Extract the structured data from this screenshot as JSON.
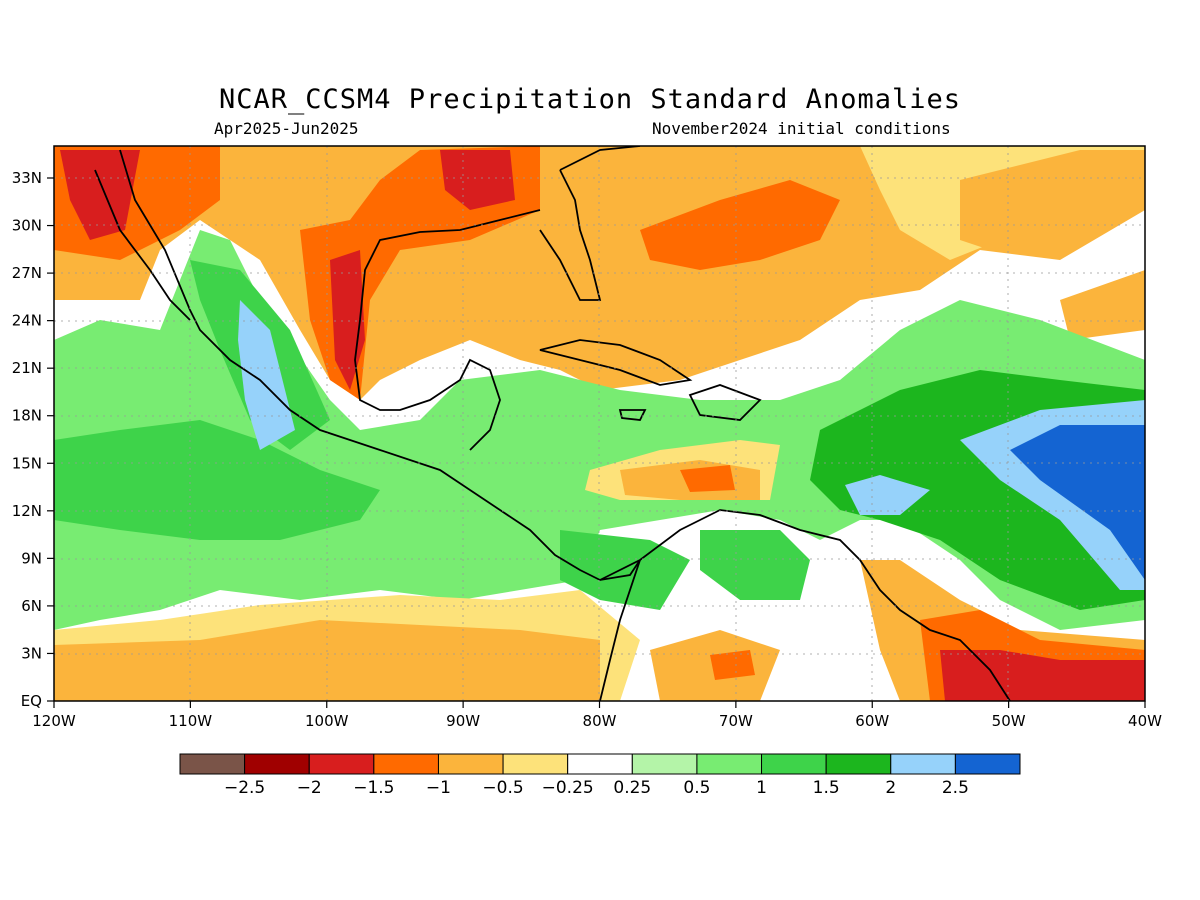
{
  "map": {
    "title": "NCAR_CCSM4 Precipitation Standard Anomalies",
    "period": "Apr2025-Jun2025",
    "initial_conditions": "November2024 initial conditions",
    "x_ticks": [
      "120W",
      "110W",
      "100W",
      "90W",
      "80W",
      "70W",
      "60W",
      "50W",
      "40W"
    ],
    "y_ticks": [
      "33N",
      "30N",
      "27N",
      "24N",
      "21N",
      "18N",
      "15N",
      "12N",
      "9N",
      "6N",
      "3N",
      "EQ"
    ],
    "grid": true
  },
  "legend": {
    "colors": [
      "#7a5448",
      "#a00000",
      "#d81e1e",
      "#ff6a00",
      "#fbb43c",
      "#fde27a",
      "#ffffff",
      "#b4f4a8",
      "#78ec72",
      "#3ed34a",
      "#1cb61e",
      "#96d2fa",
      "#1464d2"
    ],
    "labels": [
      "−2.5",
      "−2",
      "−1.5",
      "−1",
      "−0.5",
      "−0.25",
      "0.25",
      "0.5",
      "1",
      "1.5",
      "2",
      "2.5"
    ]
  }
}
